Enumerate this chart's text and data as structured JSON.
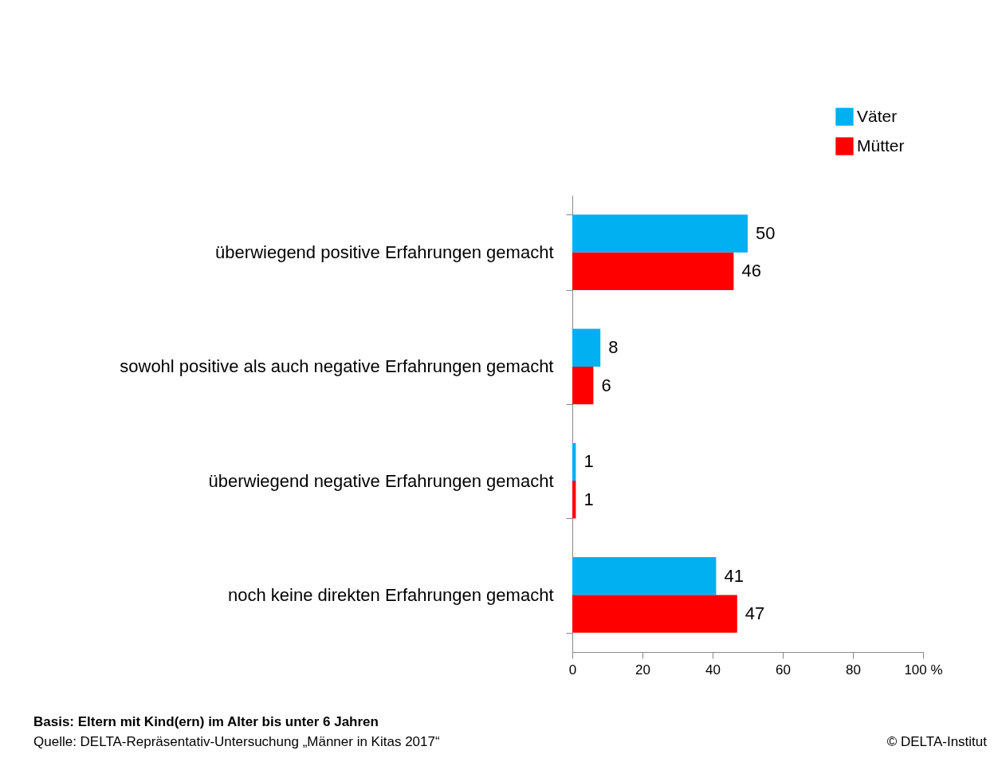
{
  "chart_data": {
    "type": "bar",
    "orientation": "horizontal",
    "categories": [
      "überwiegend positive Erfahrungen gemacht",
      "sowohl positive als auch negative Erfahrungen gemacht",
      "überwiegend negative Erfahrungen gemacht",
      "noch keine direkten Erfahrungen gemacht"
    ],
    "series": [
      {
        "name": "Väter",
        "color": "#00b0f0",
        "values": [
          50,
          8,
          1,
          41
        ]
      },
      {
        "name": "Mütter",
        "color": "#ff0000",
        "values": [
          46,
          6,
          1,
          47
        ]
      }
    ],
    "xlim": [
      0,
      100
    ],
    "xticks": [
      0,
      20,
      40,
      60,
      80,
      {
        "value": 100,
        "label": "100 %"
      }
    ],
    "data_labels": true,
    "grid": false,
    "legend": "top right",
    "annotations": [
      "Basis: Eltern mit Kind(ern) im Alter bis unter 6 Jahren",
      "Quelle: DELTA-Repräsentativ-Untersuchung „Männer in Kitas 2017“",
      "© DELTA-Institut"
    ]
  }
}
